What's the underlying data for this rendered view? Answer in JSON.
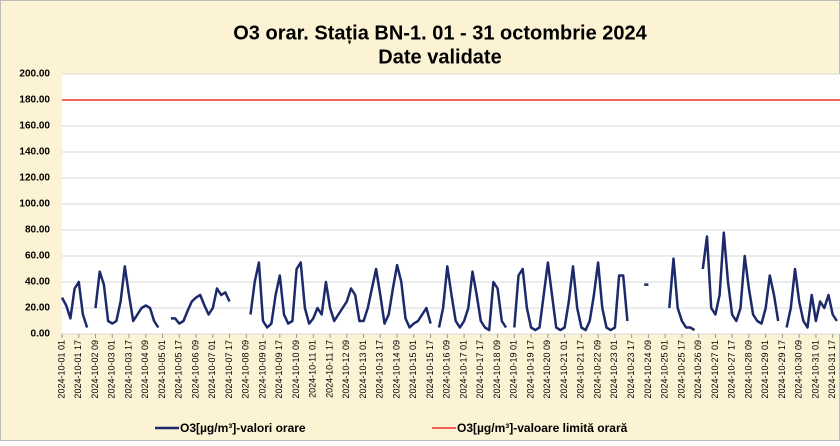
{
  "chart_data": {
    "type": "line",
    "title": "O3 orar. Stația BN-1. 01 - 31 octombrie 2024",
    "subtitle": "Date validate",
    "xlim": [
      1,
      744
    ],
    "ylim": [
      0,
      200
    ],
    "yticks": [
      {
        "value": 0,
        "label": "0.00"
      },
      {
        "value": 20,
        "label": "20.00"
      },
      {
        "value": 40,
        "label": "40.00"
      },
      {
        "value": 60,
        "label": "60.00"
      },
      {
        "value": 80,
        "label": "80.00"
      },
      {
        "value": 100,
        "label": "100.00"
      },
      {
        "value": 120,
        "label": "120.00"
      },
      {
        "value": 140,
        "label": "140.00"
      },
      {
        "value": 160,
        "label": "160.00"
      },
      {
        "value": 180,
        "label": "180.00"
      },
      {
        "value": 200,
        "label": "200.00"
      }
    ],
    "xticks": [
      {
        "value": 1,
        "label": "2024-10-01 01"
      },
      {
        "value": 17,
        "label": "2024-10-01 17"
      },
      {
        "value": 33,
        "label": "2024-10-02 09"
      },
      {
        "value": 49,
        "label": "2024-10-03 01"
      },
      {
        "value": 65,
        "label": "2024-10-03 17"
      },
      {
        "value": 81,
        "label": "2024-10-04 09"
      },
      {
        "value": 97,
        "label": "2024-10-05 01"
      },
      {
        "value": 113,
        "label": "2024-10-05 17"
      },
      {
        "value": 129,
        "label": "2024-10-06 09"
      },
      {
        "value": 145,
        "label": "2024-10-07 01"
      },
      {
        "value": 161,
        "label": "2024-10-07 17"
      },
      {
        "value": 177,
        "label": "2024-10-08 09"
      },
      {
        "value": 193,
        "label": "2024-10-09 01"
      },
      {
        "value": 209,
        "label": "2024-10-09 17"
      },
      {
        "value": 225,
        "label": "2024-10-10 09"
      },
      {
        "value": 241,
        "label": "2024-10-11 01"
      },
      {
        "value": 257,
        "label": "2024-10-11 17"
      },
      {
        "value": 273,
        "label": "2024-10-12 09"
      },
      {
        "value": 289,
        "label": "2024-10-13 01"
      },
      {
        "value": 305,
        "label": "2024-10-13 17"
      },
      {
        "value": 321,
        "label": "2024-10-14 09"
      },
      {
        "value": 337,
        "label": "2024-10-15 01"
      },
      {
        "value": 353,
        "label": "2024-10-15 17"
      },
      {
        "value": 369,
        "label": "2024-10-16 09"
      },
      {
        "value": 385,
        "label": "2024-10-17 01"
      },
      {
        "value": 401,
        "label": "2024-10-17 17"
      },
      {
        "value": 417,
        "label": "2024-10-18 09"
      },
      {
        "value": 433,
        "label": "2024-10-19 01"
      },
      {
        "value": 449,
        "label": "2024-10-19 17"
      },
      {
        "value": 465,
        "label": "2024-10-20 09"
      },
      {
        "value": 481,
        "label": "2024-10-21 01"
      },
      {
        "value": 497,
        "label": "2024-10-21 17"
      },
      {
        "value": 513,
        "label": "2024-10-22 09"
      },
      {
        "value": 529,
        "label": "2024-10-23 01"
      },
      {
        "value": 545,
        "label": "2024-10-23 17"
      },
      {
        "value": 561,
        "label": "2024-10-24 09"
      },
      {
        "value": 577,
        "label": "2024-10-25 01"
      },
      {
        "value": 593,
        "label": "2024-10-25 17"
      },
      {
        "value": 609,
        "label": "2024-10-26 09"
      },
      {
        "value": 625,
        "label": "2024-10-27 01"
      },
      {
        "value": 641,
        "label": "2024-10-27 17"
      },
      {
        "value": 657,
        "label": "2024-10-28 09"
      },
      {
        "value": 673,
        "label": "2024-10-29 01"
      },
      {
        "value": 689,
        "label": "2024-10-29 17"
      },
      {
        "value": 705,
        "label": "2024-10-30 09"
      },
      {
        "value": 721,
        "label": "2024-10-31 01"
      },
      {
        "value": 737,
        "label": "2024-10-31 17"
      }
    ],
    "grid": true,
    "x": [
      1,
      5,
      9,
      13,
      17,
      21,
      25,
      29,
      33,
      37,
      41,
      45,
      49,
      53,
      57,
      61,
      65,
      69,
      73,
      77,
      81,
      85,
      89,
      93,
      97,
      101,
      105,
      109,
      113,
      117,
      121,
      125,
      129,
      133,
      137,
      141,
      145,
      149,
      153,
      157,
      161,
      165,
      169,
      173,
      177,
      181,
      185,
      189,
      193,
      197,
      201,
      205,
      209,
      213,
      217,
      221,
      225,
      229,
      233,
      237,
      241,
      245,
      249,
      253,
      257,
      261,
      265,
      269,
      273,
      277,
      281,
      285,
      289,
      293,
      297,
      301,
      305,
      309,
      313,
      317,
      321,
      325,
      329,
      333,
      337,
      341,
      345,
      349,
      353,
      357,
      361,
      365,
      369,
      373,
      377,
      381,
      385,
      389,
      393,
      397,
      401,
      405,
      409,
      413,
      417,
      421,
      425,
      429,
      433,
      437,
      441,
      445,
      449,
      453,
      457,
      461,
      465,
      469,
      473,
      477,
      481,
      485,
      489,
      493,
      497,
      501,
      505,
      509,
      513,
      517,
      521,
      525,
      529,
      533,
      537,
      541,
      545,
      549,
      553,
      557,
      561,
      565,
      569,
      573,
      577,
      581,
      585,
      589,
      593,
      597,
      601,
      605,
      609,
      613,
      617,
      621,
      625,
      629,
      633,
      637,
      641,
      645,
      649,
      653,
      657,
      661,
      665,
      669,
      673,
      677,
      681,
      685,
      689,
      693,
      697,
      701,
      705,
      709,
      713,
      717,
      721,
      725,
      729,
      733,
      737,
      741
    ],
    "series": [
      {
        "name": "O3[µg/m³]-valori orare",
        "color": "#1c2a6b",
        "values": [
          28,
          22,
          12,
          35,
          40,
          15,
          5,
          null,
          20,
          48,
          38,
          10,
          8,
          10,
          25,
          52,
          30,
          10,
          15,
          20,
          22,
          20,
          10,
          5,
          null,
          null,
          12,
          12,
          8,
          10,
          18,
          25,
          28,
          30,
          22,
          15,
          20,
          35,
          30,
          32,
          25,
          null,
          null,
          null,
          null,
          15,
          40,
          55,
          10,
          5,
          8,
          30,
          45,
          15,
          8,
          10,
          50,
          55,
          20,
          8,
          12,
          20,
          15,
          40,
          20,
          10,
          15,
          20,
          25,
          35,
          30,
          10,
          10,
          20,
          35,
          50,
          30,
          8,
          15,
          35,
          53,
          40,
          12,
          5,
          8,
          10,
          15,
          20,
          8,
          null,
          5,
          20,
          52,
          30,
          10,
          5,
          10,
          20,
          48,
          30,
          10,
          5,
          3,
          40,
          35,
          10,
          5,
          null,
          5,
          45,
          50,
          20,
          5,
          3,
          5,
          30,
          55,
          30,
          5,
          3,
          5,
          25,
          52,
          20,
          5,
          3,
          10,
          30,
          55,
          20,
          5,
          3,
          5,
          45,
          45,
          10,
          null,
          null,
          null,
          38,
          38,
          null,
          null,
          null,
          null,
          20,
          58,
          20,
          10,
          5,
          5,
          3,
          null,
          50,
          75,
          20,
          15,
          30,
          78,
          40,
          15,
          10,
          20,
          60,
          35,
          15,
          10,
          8,
          20,
          45,
          30,
          10,
          null,
          5,
          20,
          50,
          25,
          10,
          5,
          30,
          10,
          25,
          20,
          30,
          15,
          10
        ]
      },
      {
        "name": "O3[µg/m³]-valoare limită orară",
        "color": "#e8322b",
        "limit": 180
      }
    ]
  }
}
